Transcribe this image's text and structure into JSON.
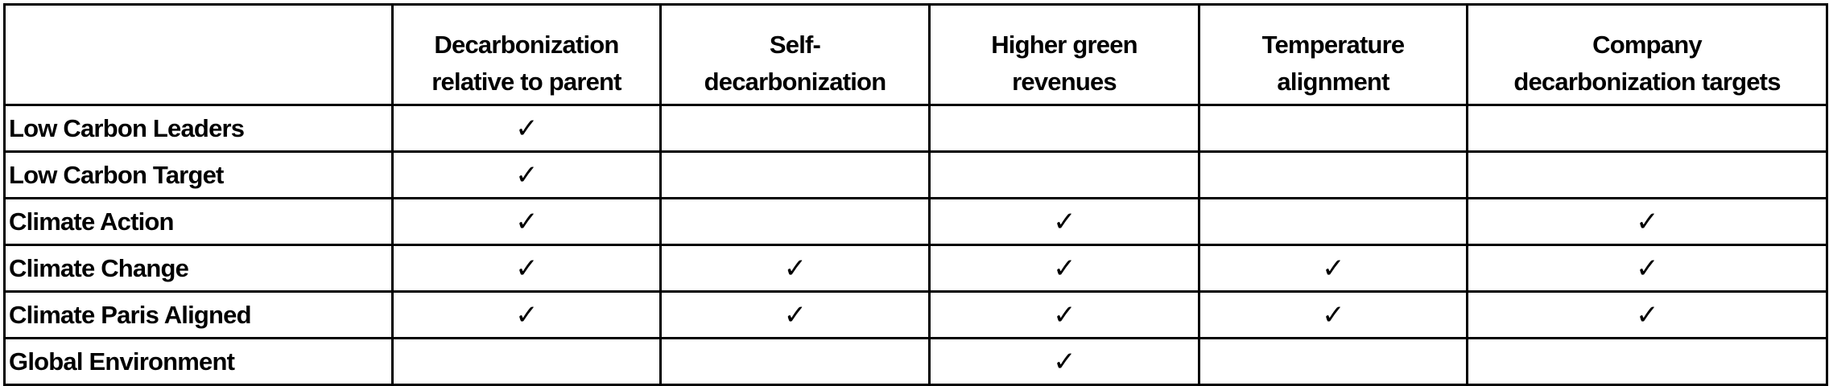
{
  "table": {
    "headers": [
      "",
      "Decarbonization relative to parent",
      "Self-decarbonization",
      "Higher green revenues",
      "Temperature alignment",
      "Company decarbonization targets"
    ],
    "header_lines": [
      [
        ""
      ],
      [
        "Decarbonization",
        "relative to parent"
      ],
      [
        "Self-",
        "decarbonization"
      ],
      [
        "Higher green",
        "revenues"
      ],
      [
        "Temperature",
        "alignment"
      ],
      [
        "Company",
        "decarbonization targets"
      ]
    ],
    "check_icon": "checkmark-icon",
    "check_glyph": "✓",
    "rows": [
      {
        "name": "Low Carbon Leaders",
        "checks": [
          true,
          false,
          false,
          false,
          false
        ]
      },
      {
        "name": "Low Carbon Target",
        "checks": [
          true,
          false,
          false,
          false,
          false
        ]
      },
      {
        "name": "Climate Action",
        "checks": [
          true,
          false,
          true,
          false,
          true
        ]
      },
      {
        "name": "Climate Change",
        "checks": [
          true,
          true,
          true,
          true,
          true
        ]
      },
      {
        "name": "Climate Paris Aligned",
        "checks": [
          true,
          true,
          true,
          true,
          true
        ]
      },
      {
        "name": "Global Environment",
        "checks": [
          false,
          false,
          true,
          false,
          false
        ]
      }
    ]
  }
}
